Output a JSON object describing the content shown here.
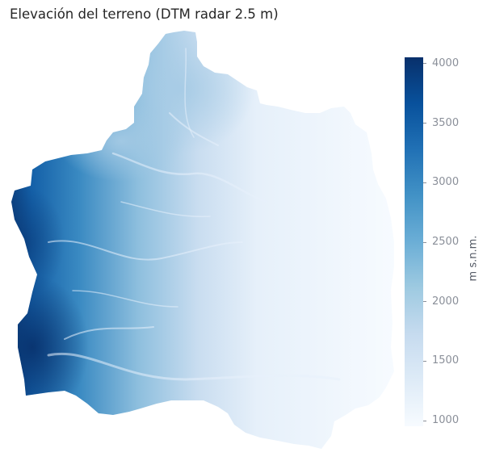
{
  "title": "Elevación del terreno (DTM radar 2.5 m)",
  "colorbar": {
    "label": "m s.n.m.",
    "min": 950,
    "max": 4050,
    "ticks": [
      {
        "value": 1000,
        "label": "1000"
      },
      {
        "value": 1500,
        "label": "1500"
      },
      {
        "value": 2000,
        "label": "2000"
      },
      {
        "value": 2500,
        "label": "2500"
      },
      {
        "value": 3000,
        "label": "3000"
      },
      {
        "value": 3500,
        "label": "3500"
      },
      {
        "value": 4000,
        "label": "4000"
      }
    ],
    "colormap": "Blues",
    "colors": [
      "#f7fbff",
      "#deebf7",
      "#c6dbef",
      "#9ecae1",
      "#6baed6",
      "#4292c6",
      "#2171b5",
      "#08519c",
      "#08306b"
    ]
  },
  "map": {
    "high_elevation_side": "west",
    "low_elevation_side": "east"
  }
}
